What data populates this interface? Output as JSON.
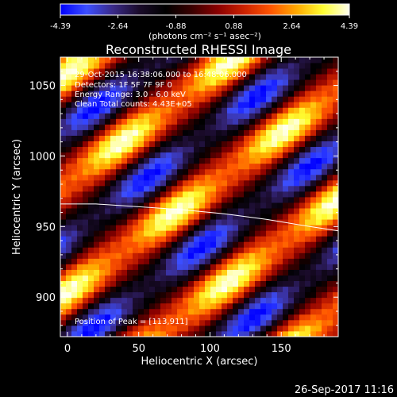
{
  "colorbar": {
    "tick_labels": [
      "-4.39",
      "-2.64",
      "-0.88",
      "0.88",
      "2.64",
      "4.39"
    ],
    "tick_values": [
      -4.39,
      -2.64,
      -0.88,
      0.88,
      2.64,
      4.39
    ],
    "range": [
      -4.39,
      4.39
    ],
    "units_label": "(photons cm⁻² s⁻¹ asec⁻²)",
    "colormap": [
      "#0000ff",
      "#3c4fff",
      "#3a2a88",
      "#1a0b2a",
      "#000000",
      "#3a0000",
      "#8a0000",
      "#cc2200",
      "#ff5500",
      "#ffaa00",
      "#ffff33",
      "#ffffee"
    ]
  },
  "chart_data": {
    "type": "heatmap",
    "title": "Reconstructed RHESSI Image",
    "xlabel": "Heliocentric X (arcsec)",
    "ylabel": "Heliocentric Y (arcsec)",
    "xlim": [
      -5,
      190
    ],
    "ylim": [
      872,
      1070
    ],
    "x_ticks": [
      0,
      50,
      100,
      150
    ],
    "y_ticks": [
      900,
      950,
      1000,
      1050
    ],
    "value_range": [
      -4.39,
      4.39
    ],
    "pattern": "diagonal fringes (positive bright bands / negative blue bands) running lower-left to upper-right",
    "annotations": [
      "29-Oct-2015 16:38:06.000 to 16:48:06.000",
      "Detectors: 1F 5F 7F 9F 0",
      "Energy Range: 3.0 - 6.0 keV",
      "Clean     Total counts: 4.43E+05",
      "Position of Peak = [113,911]"
    ],
    "peak_position": [
      113,
      911
    ],
    "limb_curve": {
      "x": [
        -5,
        20,
        50,
        80,
        110,
        140,
        170,
        190
      ],
      "y": [
        966,
        966,
        964,
        962,
        959,
        955,
        950,
        947
      ]
    }
  },
  "footer": {
    "timestamp": "26-Sep-2017 11:16"
  }
}
